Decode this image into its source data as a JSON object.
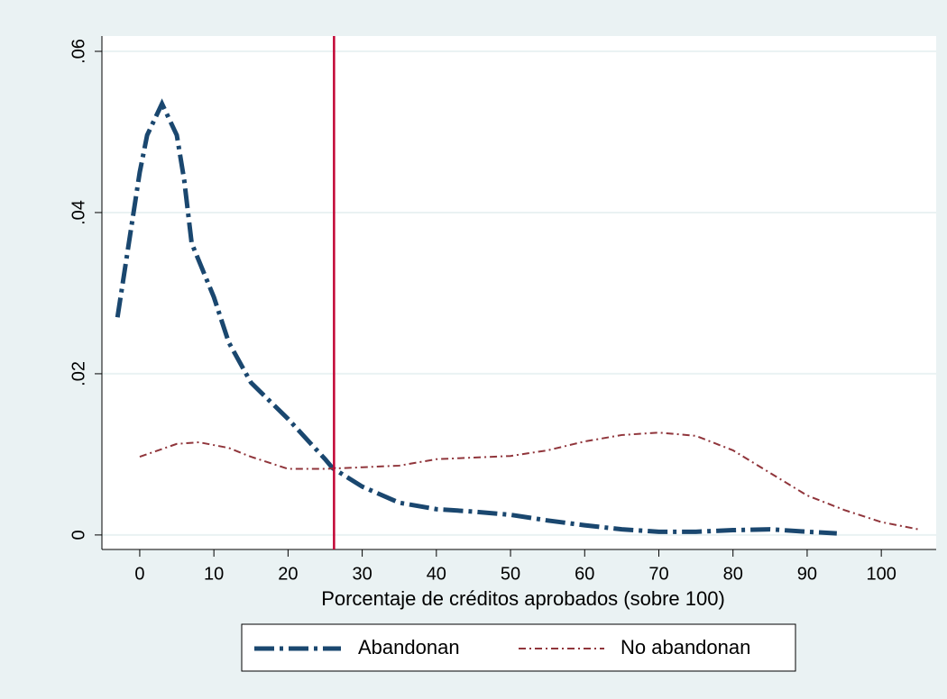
{
  "chart_data": {
    "type": "line",
    "x_label": "Porcentaje de créditos aprobados (sobre 100)",
    "xlim": [
      -5.1,
      107.4
    ],
    "ylim": [
      -0.0018,
      0.0619
    ],
    "xticks": [
      0,
      10,
      20,
      30,
      40,
      50,
      60,
      70,
      80,
      90,
      100
    ],
    "yticks": [
      0,
      {
        "value": 0.02,
        "label": ".02"
      },
      {
        "value": 0.04,
        "label": ".04"
      },
      {
        "value": 0.06,
        "label": ".06"
      }
    ],
    "grid": true,
    "xline": 26.2,
    "xline_color": "#c10534",
    "legend": "bottom",
    "series": [
      {
        "name": "Abandonan",
        "color": "#1a476f",
        "x": [
          -3,
          0,
          1,
          3,
          5,
          6,
          7,
          10,
          12,
          15,
          20,
          25,
          26,
          30,
          35,
          40,
          45,
          50,
          55,
          60,
          65,
          70,
          75,
          80,
          85,
          90,
          94
        ],
        "values": [
          0.027,
          0.045,
          0.0496,
          0.0535,
          0.0496,
          0.044,
          0.0362,
          0.0295,
          0.0239,
          0.0189,
          0.0144,
          0.0094,
          0.0083,
          0.006,
          0.004,
          0.0032,
          0.0029,
          0.0025,
          0.0018,
          0.0012,
          0.0007,
          0.0004,
          0.0004,
          0.0006,
          0.0007,
          0.0004,
          0.0002
        ]
      },
      {
        "name": "No abandonan",
        "color": "#90353b",
        "x": [
          0,
          5,
          8,
          12,
          15,
          20,
          25,
          30,
          35,
          40,
          45,
          50,
          55,
          60,
          65,
          70,
          75,
          80,
          85,
          90,
          95,
          100,
          105
        ],
        "values": [
          0.0097,
          0.0113,
          0.0115,
          0.0108,
          0.0097,
          0.0082,
          0.0082,
          0.0084,
          0.0086,
          0.0094,
          0.0096,
          0.0098,
          0.0105,
          0.0116,
          0.0124,
          0.0127,
          0.0123,
          0.0105,
          0.0077,
          0.0049,
          0.0031,
          0.0016,
          0.0007
        ]
      }
    ]
  }
}
